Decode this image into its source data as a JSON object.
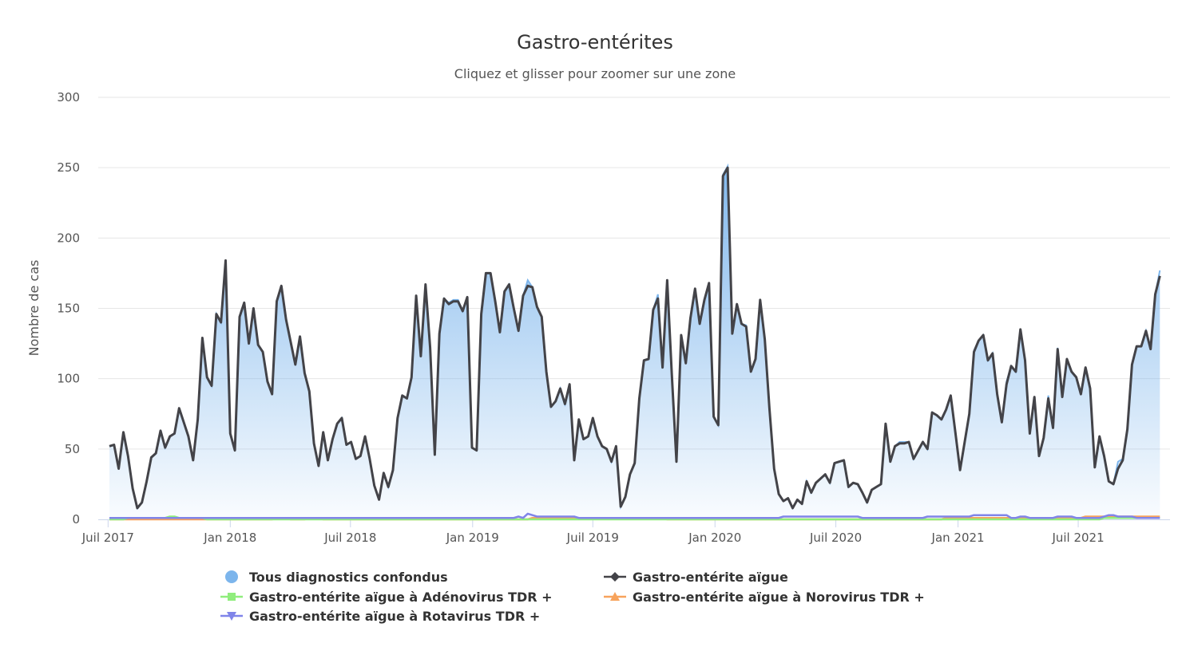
{
  "chart_data": {
    "type": "area",
    "title": "Gastro-entérites",
    "subtitle": "Cliquez et glisser pour zoomer sur une zone",
    "ylabel": "Nombre de cas",
    "xlabel": "",
    "ylim": [
      0,
      300
    ],
    "yticks": [
      0,
      50,
      100,
      150,
      200,
      250,
      300
    ],
    "xticks": [
      {
        "date": "2017-07-01",
        "label": "Juil 2017"
      },
      {
        "date": "2018-01-01",
        "label": "Jan 2018"
      },
      {
        "date": "2018-07-01",
        "label": "Juil 2018"
      },
      {
        "date": "2019-01-01",
        "label": "Jan 2019"
      },
      {
        "date": "2019-07-01",
        "label": "Juil 2019"
      },
      {
        "date": "2020-01-01",
        "label": "Jan 2020"
      },
      {
        "date": "2020-07-01",
        "label": "Juil 2020"
      },
      {
        "date": "2021-01-01",
        "label": "Jan 2021"
      },
      {
        "date": "2021-07-01",
        "label": "Juil 2021"
      }
    ],
    "x_first": "2017-07-03",
    "x_interval": "week",
    "grid": true,
    "legend_position": "bottom",
    "series": [
      {
        "name": "Tous diagnostics confondus",
        "type": "area",
        "color": "#7cb5ec",
        "marker": "circle",
        "values": [
          52,
          53,
          36,
          62,
          45,
          22,
          8,
          12,
          27,
          44,
          47,
          63,
          51,
          59,
          61,
          79,
          69,
          59,
          42,
          71,
          129,
          101,
          95,
          146,
          140,
          184,
          61,
          49,
          144,
          154,
          125,
          150,
          124,
          119,
          98,
          89,
          155,
          166,
          142,
          126,
          110,
          130,
          104,
          91,
          54,
          38,
          62,
          42,
          57,
          68,
          72,
          53,
          55,
          43,
          45,
          59,
          43,
          24,
          14,
          33,
          23,
          35,
          72,
          88,
          86,
          101,
          159,
          116,
          167,
          122,
          46,
          132,
          157,
          154,
          156,
          156,
          148,
          158,
          51,
          49,
          146,
          175,
          175,
          155,
          133,
          162,
          167,
          150,
          134,
          159,
          170,
          165,
          151,
          144,
          105,
          80,
          84,
          93,
          82,
          96,
          42,
          71,
          57,
          59,
          72,
          59,
          52,
          50,
          41,
          52,
          9,
          16,
          32,
          40,
          86,
          113,
          114,
          149,
          160,
          108,
          170,
          103,
          41,
          131,
          111,
          143,
          164,
          139,
          156,
          168,
          73,
          67,
          245,
          251,
          132,
          153,
          139,
          138,
          105,
          114,
          156,
          128,
          79,
          36,
          18,
          13,
          15,
          8,
          14,
          11,
          27,
          19,
          26,
          29,
          32,
          26,
          40,
          41,
          42,
          23,
          26,
          25,
          19,
          12,
          21,
          23,
          25,
          68,
          41,
          52,
          55,
          55,
          55,
          43,
          49,
          55,
          50,
          76,
          74,
          71,
          78,
          88,
          62,
          35,
          55,
          75,
          120,
          127,
          131,
          113,
          118,
          89,
          69,
          98,
          109,
          105,
          135,
          113,
          61,
          87,
          45,
          58,
          88,
          65,
          122,
          87,
          114,
          105,
          101,
          89,
          108,
          93,
          37,
          59,
          45,
          27,
          25,
          41,
          43,
          64,
          110,
          123,
          123,
          134,
          121,
          160,
          177
        ]
      },
      {
        "name": "Gastro-entérite aïgue",
        "type": "line",
        "color": "#434348",
        "marker": "diamond",
        "values": [
          52,
          53,
          36,
          62,
          45,
          22,
          8,
          12,
          27,
          44,
          47,
          63,
          51,
          59,
          61,
          79,
          69,
          59,
          42,
          71,
          129,
          101,
          95,
          146,
          140,
          184,
          61,
          49,
          144,
          154,
          125,
          150,
          124,
          119,
          98,
          89,
          155,
          166,
          142,
          126,
          110,
          130,
          104,
          91,
          54,
          38,
          62,
          42,
          57,
          68,
          72,
          53,
          55,
          43,
          45,
          59,
          43,
          24,
          14,
          33,
          23,
          35,
          72,
          88,
          86,
          101,
          159,
          116,
          167,
          122,
          46,
          132,
          157,
          153,
          155,
          155,
          148,
          158,
          51,
          49,
          146,
          175,
          175,
          155,
          133,
          162,
          167,
          150,
          134,
          159,
          166,
          165,
          151,
          144,
          105,
          80,
          84,
          93,
          82,
          96,
          42,
          71,
          57,
          59,
          72,
          59,
          52,
          50,
          41,
          52,
          9,
          16,
          32,
          40,
          86,
          113,
          114,
          149,
          157,
          108,
          170,
          103,
          41,
          131,
          111,
          143,
          164,
          139,
          156,
          168,
          73,
          67,
          244,
          250,
          132,
          153,
          139,
          137,
          105,
          114,
          156,
          128,
          79,
          36,
          18,
          13,
          15,
          8,
          14,
          11,
          27,
          19,
          26,
          29,
          32,
          26,
          40,
          41,
          42,
          23,
          26,
          25,
          19,
          12,
          21,
          23,
          25,
          68,
          41,
          52,
          54,
          54,
          55,
          43,
          49,
          55,
          50,
          76,
          74,
          71,
          78,
          88,
          62,
          35,
          55,
          75,
          119,
          127,
          131,
          113,
          118,
          89,
          69,
          96,
          109,
          105,
          135,
          113,
          61,
          87,
          45,
          58,
          86,
          65,
          121,
          87,
          114,
          105,
          101,
          89,
          108,
          93,
          37,
          59,
          45,
          27,
          25,
          36,
          42,
          64,
          110,
          123,
          123,
          134,
          121,
          160,
          173
        ]
      },
      {
        "name": "Gastro-entérite aïgue à Adénovirus TDR +",
        "type": "line",
        "color": "#90ed7d",
        "marker": "square",
        "values": [
          0,
          0,
          0,
          0,
          1,
          1,
          1,
          1,
          1,
          1,
          1,
          1,
          1,
          2,
          2,
          1,
          1,
          1,
          1,
          1,
          1,
          0,
          0,
          0,
          0,
          0,
          0,
          0,
          0,
          0,
          0,
          0,
          0,
          0,
          0,
          0,
          0,
          0,
          0,
          0,
          0,
          0,
          0,
          0,
          0,
          0,
          0,
          0,
          0,
          0,
          0,
          0,
          0,
          0,
          0,
          0,
          0,
          0,
          0,
          0,
          0,
          0,
          0,
          0,
          0,
          0,
          0,
          0,
          0,
          0,
          0,
          0,
          0,
          0,
          0,
          0,
          0,
          0,
          0,
          0,
          0,
          0,
          0,
          0,
          0,
          0,
          0,
          0,
          0,
          0,
          0,
          0,
          0,
          0,
          0,
          0,
          0,
          0,
          0,
          0,
          0,
          0,
          0,
          0,
          0,
          0,
          0,
          0,
          0,
          0,
          0,
          0,
          0,
          0,
          0,
          0,
          0,
          0,
          0,
          0,
          0,
          0,
          0,
          0,
          0,
          0,
          0,
          0,
          0,
          0,
          0,
          0,
          0,
          0,
          0,
          0,
          0,
          0,
          0,
          0,
          0,
          0,
          0,
          0,
          0,
          0,
          0,
          0,
          0,
          0,
          0,
          0,
          0,
          0,
          0,
          0,
          0,
          0,
          0,
          0,
          0,
          0,
          0,
          0,
          0,
          0,
          0,
          0,
          0,
          0,
          0,
          0,
          0,
          0,
          0,
          0,
          0,
          0,
          0,
          0,
          0,
          0,
          0,
          0,
          0,
          0,
          0,
          0,
          0,
          0,
          0,
          0,
          0,
          0,
          0,
          0,
          0,
          0,
          0,
          0,
          0,
          0,
          0,
          0,
          0,
          0,
          0,
          0,
          0,
          0,
          0,
          0,
          0,
          0,
          1,
          1,
          1,
          1,
          1,
          1,
          1,
          1,
          1,
          1,
          1,
          1,
          1
        ]
      },
      {
        "name": "Gastro-entérite aïgue à Norovirus TDR +",
        "type": "line",
        "color": "#f7a35c",
        "marker": "triangle",
        "values": [
          0,
          0,
          0,
          0,
          0,
          0,
          0,
          0,
          0,
          0,
          0,
          0,
          0,
          0,
          0,
          0,
          0,
          0,
          0,
          0,
          0,
          0,
          0,
          0,
          0,
          0,
          0,
          0,
          0,
          0,
          0,
          0,
          0,
          0,
          0,
          0,
          1,
          1,
          1,
          0,
          0,
          0,
          0,
          1,
          1,
          1,
          0,
          0,
          0,
          0,
          0,
          0,
          0,
          0,
          0,
          0,
          0,
          0,
          0,
          0,
          0,
          0,
          0,
          0,
          0,
          0,
          0,
          0,
          0,
          0,
          0,
          0,
          0,
          0,
          0,
          0,
          0,
          0,
          0,
          0,
          0,
          0,
          0,
          0,
          0,
          0,
          0,
          0,
          0,
          0,
          0,
          1,
          1,
          1,
          1,
          1,
          1,
          1,
          1,
          1,
          1,
          1,
          1,
          1,
          1,
          1,
          1,
          1,
          1,
          1,
          1,
          1,
          1,
          1,
          1,
          1,
          1,
          1,
          1,
          1,
          0,
          0,
          0,
          0,
          0,
          0,
          0,
          0,
          0,
          0,
          0,
          0,
          0,
          0,
          0,
          0,
          0,
          0,
          0,
          0,
          0,
          0,
          0,
          0,
          0,
          0,
          0,
          0,
          0,
          0,
          0,
          0,
          0,
          0,
          0,
          0,
          0,
          0,
          0,
          0,
          0,
          0,
          0,
          0,
          0,
          0,
          0,
          0,
          0,
          0,
          0,
          0,
          0,
          0,
          0,
          0,
          0,
          0,
          0,
          0,
          1,
          1,
          1,
          1,
          1,
          1,
          1,
          1,
          1,
          1,
          1,
          1,
          1,
          1,
          1,
          1,
          1,
          1,
          1,
          1,
          1,
          1,
          1,
          1,
          1,
          1,
          1,
          1,
          1,
          1,
          2,
          2,
          2,
          2,
          2,
          2,
          2,
          2,
          2,
          2,
          2,
          2,
          2,
          2,
          2,
          2,
          2
        ]
      },
      {
        "name": "Gastro-entérite aïgue à Rotavirus TDR +",
        "type": "line",
        "color": "#8085e9",
        "marker": "triangle-down",
        "values": [
          1,
          1,
          1,
          1,
          1,
          1,
          1,
          1,
          1,
          1,
          1,
          1,
          1,
          1,
          1,
          1,
          1,
          1,
          1,
          1,
          1,
          1,
          1,
          1,
          1,
          1,
          1,
          1,
          1,
          1,
          1,
          1,
          1,
          1,
          1,
          1,
          1,
          1,
          1,
          1,
          1,
          1,
          1,
          1,
          1,
          1,
          1,
          1,
          1,
          1,
          1,
          1,
          1,
          1,
          1,
          1,
          1,
          1,
          1,
          1,
          1,
          1,
          1,
          1,
          1,
          1,
          1,
          1,
          1,
          1,
          1,
          1,
          1,
          1,
          1,
          1,
          1,
          1,
          1,
          1,
          1,
          1,
          1,
          1,
          1,
          1,
          1,
          1,
          2,
          1,
          4,
          3,
          2,
          2,
          2,
          2,
          2,
          2,
          2,
          2,
          2,
          1,
          1,
          1,
          1,
          1,
          1,
          1,
          1,
          1,
          1,
          1,
          1,
          1,
          1,
          1,
          1,
          1,
          1,
          1,
          1,
          1,
          1,
          1,
          1,
          1,
          1,
          1,
          1,
          1,
          1,
          1,
          1,
          1,
          1,
          1,
          1,
          1,
          1,
          1,
          1,
          1,
          1,
          1,
          1,
          2,
          2,
          2,
          2,
          2,
          2,
          2,
          2,
          2,
          2,
          2,
          2,
          2,
          2,
          2,
          2,
          2,
          1,
          1,
          1,
          1,
          1,
          1,
          1,
          1,
          1,
          1,
          1,
          1,
          1,
          1,
          2,
          2,
          2,
          2,
          2,
          2,
          2,
          2,
          2,
          2,
          3,
          3,
          3,
          3,
          3,
          3,
          3,
          3,
          1,
          1,
          2,
          2,
          1,
          1,
          1,
          1,
          1,
          1,
          2,
          2,
          2,
          2,
          1,
          1,
          1,
          1,
          1,
          1,
          2,
          3,
          3,
          2,
          2,
          2,
          2,
          1,
          1,
          1,
          1,
          1,
          1
        ]
      }
    ]
  }
}
